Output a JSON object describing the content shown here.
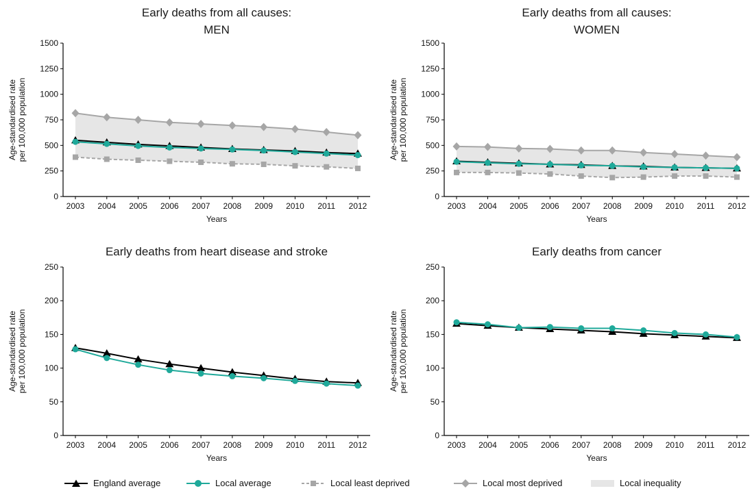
{
  "legend": {
    "england": "England average",
    "local": "Local average",
    "least": "Local least deprived",
    "most": "Local most deprived",
    "inequality": "Local inequality"
  },
  "colors": {
    "england": "#000000",
    "local": "#1fa99a",
    "least": "#a6a6a6",
    "most": "#a6a6a6",
    "band": "#e6e6e6"
  },
  "chart_data": [
    {
      "type": "line",
      "title": [
        "Early deaths from all causes:",
        "MEN"
      ],
      "xlabel": "Years",
      "ylabel": [
        "Age-standardised rate",
        "per 100,000 population"
      ],
      "x": [
        "2003",
        "2004",
        "2005",
        "2006",
        "2007",
        "2008",
        "2009",
        "2010",
        "2011",
        "2012"
      ],
      "ylim": [
        0,
        1500
      ],
      "yticks": [
        0,
        250,
        500,
        750,
        1000,
        1250,
        1500
      ],
      "band": true,
      "series": [
        {
          "key": "most",
          "name": "Local most deprived",
          "values": [
            815,
            775,
            750,
            725,
            710,
            695,
            680,
            660,
            630,
            600
          ]
        },
        {
          "key": "least",
          "name": "Local least deprived",
          "values": [
            385,
            365,
            355,
            345,
            335,
            320,
            315,
            300,
            290,
            275
          ]
        },
        {
          "key": "england",
          "name": "England average",
          "values": [
            550,
            530,
            510,
            495,
            480,
            465,
            455,
            445,
            430,
            420
          ]
        },
        {
          "key": "local",
          "name": "Local average",
          "values": [
            535,
            515,
            495,
            480,
            470,
            460,
            450,
            435,
            420,
            405
          ]
        }
      ]
    },
    {
      "type": "line",
      "title": [
        "Early deaths from all causes:",
        "WOMEN"
      ],
      "xlabel": "Years",
      "ylabel": [
        "Age-standardised rate",
        "per 100,000 population"
      ],
      "x": [
        "2003",
        "2004",
        "2005",
        "2006",
        "2007",
        "2008",
        "2009",
        "2010",
        "2011",
        "2012"
      ],
      "ylim": [
        0,
        1500
      ],
      "yticks": [
        0,
        250,
        500,
        750,
        1000,
        1250,
        1500
      ],
      "band": true,
      "series": [
        {
          "key": "most",
          "name": "Local most deprived",
          "values": [
            490,
            485,
            470,
            465,
            450,
            450,
            430,
            415,
            400,
            385
          ]
        },
        {
          "key": "least",
          "name": "Local least deprived",
          "values": [
            235,
            235,
            230,
            220,
            200,
            185,
            190,
            200,
            200,
            190
          ]
        },
        {
          "key": "england",
          "name": "England average",
          "values": [
            345,
            335,
            325,
            315,
            310,
            300,
            295,
            285,
            280,
            275
          ]
        },
        {
          "key": "local",
          "name": "Local average",
          "values": [
            340,
            330,
            320,
            315,
            305,
            300,
            290,
            285,
            280,
            275
          ]
        }
      ]
    },
    {
      "type": "line",
      "title": [
        "Early deaths from heart disease and stroke"
      ],
      "xlabel": "Years",
      "ylabel": [
        "Age-standardised rate",
        "per 100,000 population"
      ],
      "x": [
        "2003",
        "2004",
        "2005",
        "2006",
        "2007",
        "2008",
        "2009",
        "2010",
        "2011",
        "2012"
      ],
      "ylim": [
        0,
        250
      ],
      "yticks": [
        0,
        50,
        100,
        150,
        200,
        250
      ],
      "band": false,
      "series": [
        {
          "key": "england",
          "name": "England average",
          "values": [
            130,
            122,
            113,
            106,
            100,
            94,
            89,
            84,
            80,
            78
          ]
        },
        {
          "key": "local",
          "name": "Local average",
          "values": [
            128,
            115,
            105,
            97,
            92,
            88,
            85,
            81,
            77,
            74
          ]
        }
      ]
    },
    {
      "type": "line",
      "title": [
        "Early deaths from cancer"
      ],
      "xlabel": "Years",
      "ylabel": [
        "Age-standardised rate",
        "per 100,000 population"
      ],
      "x": [
        "2003",
        "2004",
        "2005",
        "2006",
        "2007",
        "2008",
        "2009",
        "2010",
        "2011",
        "2012"
      ],
      "ylim": [
        0,
        250
      ],
      "yticks": [
        0,
        50,
        100,
        150,
        200,
        250
      ],
      "band": false,
      "series": [
        {
          "key": "england",
          "name": "England average",
          "values": [
            166,
            163,
            160,
            158,
            156,
            154,
            151,
            149,
            147,
            145
          ]
        },
        {
          "key": "local",
          "name": "Local average",
          "values": [
            168,
            165,
            160,
            161,
            159,
            159,
            156,
            152,
            150,
            146
          ]
        }
      ]
    }
  ]
}
